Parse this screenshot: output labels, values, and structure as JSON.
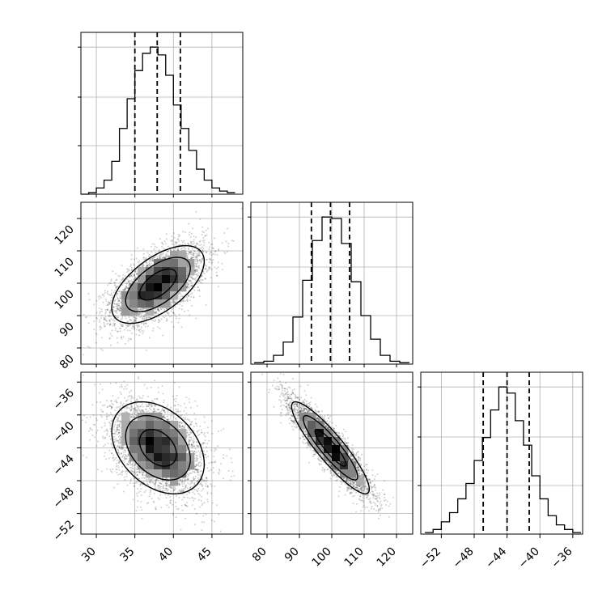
{
  "chart_data": {
    "type": "corner",
    "title": "",
    "parameters": [
      {
        "name": "",
        "range": [
          28,
          49
        ],
        "ticks": [
          30,
          35,
          40,
          45
        ],
        "tick_labels": [
          "30",
          "35",
          "40",
          "45"
        ]
      },
      {
        "name": "",
        "range": [
          75,
          125
        ],
        "ticks": [
          80,
          90,
          100,
          110,
          120
        ],
        "tick_labels": [
          "80",
          "90",
          "100",
          "110",
          "120"
        ]
      },
      {
        "name": "",
        "range": [
          -54.5,
          -34.8
        ],
        "ticks": [
          -52,
          -48,
          -44,
          -40,
          -36
        ],
        "tick_labels": [
          "−52",
          "−48",
          "−44",
          "−40",
          "−36"
        ]
      }
    ],
    "histograms": [
      {
        "param": 0,
        "bin_edges": [
          28,
          29,
          30,
          31,
          32,
          33,
          34,
          35,
          36,
          37,
          38,
          39,
          40,
          41,
          42,
          43,
          44,
          45,
          46,
          47,
          48
        ],
        "counts": [
          0,
          1,
          4,
          9,
          21,
          42,
          61,
          79,
          90,
          94,
          89,
          76,
          57,
          42,
          28,
          16,
          9,
          4,
          2,
          1
        ],
        "quantiles": [
          35.0,
          37.9,
          40.9
        ]
      },
      {
        "param": 1,
        "bin_edges": [
          76,
          79,
          82,
          85,
          88,
          91,
          94,
          97,
          100,
          103,
          106,
          109,
          112,
          115,
          118,
          121,
          124
        ],
        "counts": [
          1,
          2,
          6,
          15,
          32,
          57,
          84,
          100,
          99,
          82,
          56,
          33,
          17,
          6,
          2,
          1
        ],
        "quantiles": [
          93.7,
          99.6,
          105.5
        ]
      },
      {
        "param": 2,
        "bin_edges": [
          -54,
          -53,
          -52,
          -51,
          -50,
          -49,
          -48,
          -47,
          -46,
          -45,
          -44,
          -43,
          -42,
          -41,
          -40,
          -39,
          -38,
          -37,
          -36,
          -35
        ],
        "counts": [
          1,
          3,
          8,
          14,
          23,
          33,
          48,
          63,
          81,
          96,
          92,
          74,
          58,
          38,
          23,
          12,
          6,
          3,
          1
        ],
        "quantiles": [
          -46.9,
          -44.0,
          -41.3
        ]
      }
    ],
    "joint": [
      {
        "x": 0,
        "y": 1,
        "mean": [
          38.0,
          99.6
        ],
        "sd": [
          3.0,
          6.0
        ],
        "rho": 0.6,
        "n": 4000,
        "contours": 3
      },
      {
        "x": 0,
        "y": 2,
        "mean": [
          38.0,
          -44.0
        ],
        "sd": [
          3.0,
          2.8
        ],
        "rho": -0.35,
        "n": 4000,
        "contours": 3
      },
      {
        "x": 1,
        "y": 2,
        "mean": [
          99.6,
          -44.0
        ],
        "sd": [
          6.0,
          2.8
        ],
        "rho": -0.9,
        "n": 4000,
        "contours": 3
      }
    ],
    "grid": true,
    "legend": "none",
    "colors": {
      "line": "#000000",
      "grid": "#b0b0b0",
      "points": "#000000"
    }
  }
}
